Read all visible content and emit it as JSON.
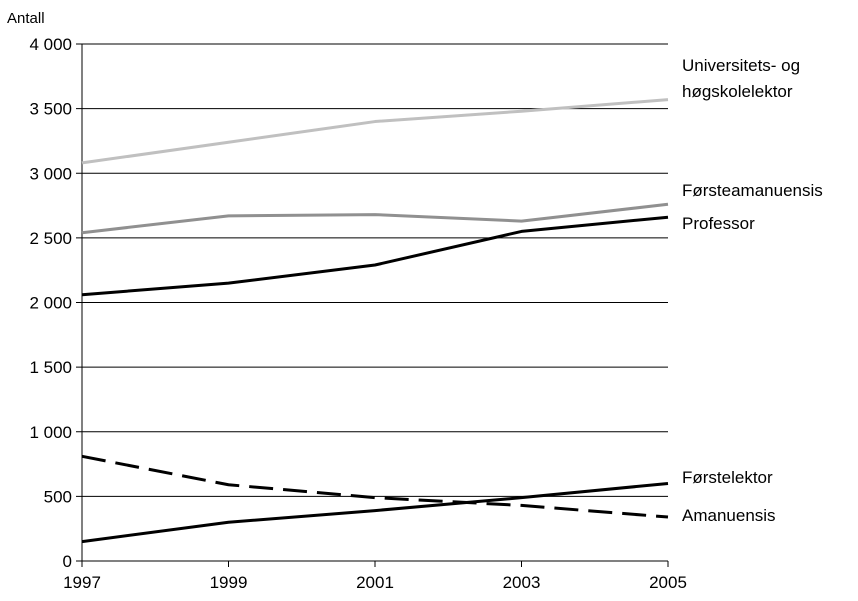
{
  "chart_data": {
    "type": "line",
    "title": "",
    "xlabel": "",
    "ylabel": "Antall",
    "x": [
      1997,
      1999,
      2001,
      2003,
      2005
    ],
    "ylim": [
      0,
      4000
    ],
    "yticks": [
      0,
      500,
      1000,
      1500,
      2000,
      2500,
      3000,
      3500,
      4000
    ],
    "ytick_labels": [
      "0",
      "500",
      "1 000",
      "1 500",
      "2 000",
      "2 500",
      "3 000",
      "3 500",
      "4 000"
    ],
    "xtick_labels": [
      "1997",
      "1999",
      "2001",
      "2003",
      "2005"
    ],
    "grid": "horizontal",
    "legend": "right-end-labels",
    "series": [
      {
        "name": "Universitets- og høgskolelektor",
        "label_lines": [
          "Universitets- og",
          "høgskolelektor"
        ],
        "values": [
          3080,
          3240,
          3400,
          3480,
          3570
        ],
        "color": "#c0c0c0",
        "dash": "solid"
      },
      {
        "name": "Førsteamanuensis",
        "label_lines": [
          "Førsteamanuensis"
        ],
        "values": [
          2540,
          2670,
          2680,
          2630,
          2760
        ],
        "color": "#909090",
        "dash": "solid"
      },
      {
        "name": "Professor",
        "label_lines": [
          "Professor"
        ],
        "values": [
          2060,
          2150,
          2290,
          2550,
          2660
        ],
        "color": "#000000",
        "dash": "solid"
      },
      {
        "name": "Førstelektor",
        "label_lines": [
          "Førstelektor"
        ],
        "values": [
          150,
          300,
          390,
          490,
          600
        ],
        "color": "#000000",
        "dash": "solid"
      },
      {
        "name": "Amanuensis",
        "label_lines": [
          "Amanuensis"
        ],
        "values": [
          810,
          590,
          490,
          430,
          340
        ],
        "color": "#000000",
        "dash": "dashed"
      }
    ]
  }
}
